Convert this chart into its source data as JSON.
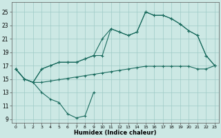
{
  "xlabel": "Humidex (Indice chaleur)",
  "bg_color": "#cce8e4",
  "grid_color": "#9fcbc6",
  "line_color": "#1a6b5e",
  "xlim": [
    -0.5,
    23.5
  ],
  "ylim": [
    8.5,
    26.5
  ],
  "xticks": [
    0,
    1,
    2,
    3,
    4,
    5,
    6,
    7,
    8,
    9,
    10,
    11,
    12,
    13,
    14,
    15,
    16,
    17,
    18,
    19,
    20,
    21,
    22,
    23
  ],
  "yticks": [
    9,
    11,
    13,
    15,
    17,
    19,
    21,
    23,
    25
  ],
  "line1_x": [
    0,
    1,
    2,
    3,
    4,
    5,
    6,
    7,
    8,
    9
  ],
  "line1_y": [
    16.5,
    15.0,
    14.5,
    13.0,
    12.0,
    11.5,
    9.8,
    9.2,
    9.5,
    13.0
  ],
  "line2_x": [
    0,
    1,
    2,
    3,
    4,
    5,
    6,
    7,
    8,
    9,
    10,
    11,
    12,
    13,
    14,
    15,
    16,
    17,
    18,
    19,
    20,
    21,
    22,
    23
  ],
  "line2_y": [
    16.5,
    15.0,
    14.5,
    14.5,
    14.7,
    14.9,
    15.1,
    15.3,
    15.5,
    15.7,
    15.9,
    16.1,
    16.3,
    16.5,
    16.7,
    16.9,
    16.9,
    16.9,
    16.9,
    16.9,
    16.9,
    16.5,
    16.5,
    17.0
  ],
  "line3_x": [
    0,
    1,
    2,
    3,
    4,
    5,
    6,
    7,
    8,
    9,
    10,
    11,
    12,
    13,
    14,
    15,
    16,
    17,
    18,
    19,
    20,
    21,
    22,
    23
  ],
  "line3_y": [
    16.5,
    15.0,
    14.5,
    16.5,
    17.0,
    17.5,
    17.5,
    17.5,
    18.0,
    18.5,
    21.0,
    22.5,
    22.0,
    21.5,
    22.0,
    25.0,
    24.5,
    24.5,
    24.0,
    23.2,
    22.2,
    21.5,
    18.5,
    17.0
  ],
  "line4_x": [
    0,
    1,
    2,
    3,
    4,
    5,
    6,
    7,
    8,
    9,
    10,
    11,
    12,
    13,
    14,
    15,
    16,
    17,
    18,
    19,
    20,
    21,
    22,
    23
  ],
  "line4_y": [
    16.5,
    15.0,
    14.5,
    16.5,
    17.0,
    17.5,
    17.5,
    17.5,
    18.0,
    18.5,
    18.5,
    22.5,
    22.0,
    21.5,
    22.0,
    25.0,
    24.5,
    24.5,
    24.0,
    23.2,
    22.2,
    21.5,
    18.5,
    17.0
  ]
}
